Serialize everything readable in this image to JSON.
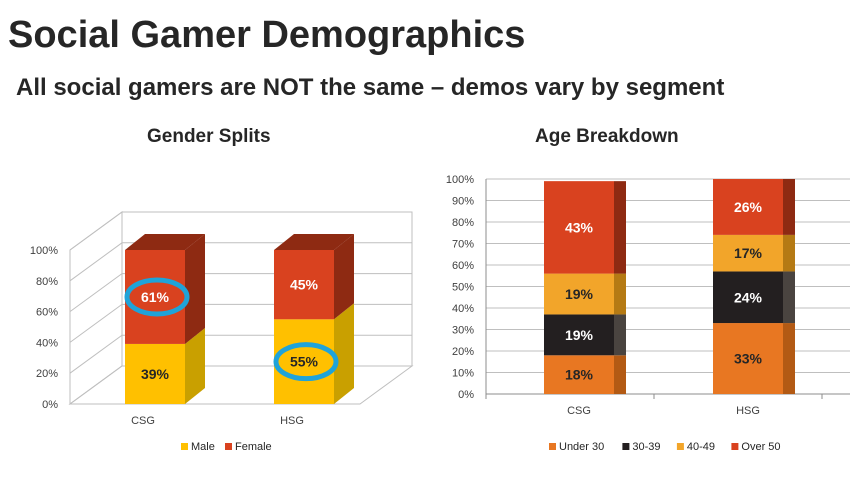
{
  "slide": {
    "title": "Social Gamer Demographics",
    "subtitle": "All social gamers are NOT the same – demos vary by segment"
  },
  "chart_data": [
    {
      "type": "bar",
      "stacked": true,
      "three_d": true,
      "title": "Gender Splits",
      "categories": [
        "CSG",
        "HSG"
      ],
      "yticks": [
        "0%",
        "20%",
        "40%",
        "60%",
        "80%",
        "100%"
      ],
      "ylim": [
        0,
        100
      ],
      "series": [
        {
          "name": "Male",
          "values": [
            39,
            55
          ],
          "labels": [
            "39%",
            "55%"
          ],
          "color": "#FFC000",
          "side": "#C9A000",
          "text_color": "#262626"
        },
        {
          "name": "Female",
          "values": [
            61,
            45
          ],
          "labels": [
            "61%",
            "45%"
          ],
          "color": "#D9421F",
          "side": "#8E2A12",
          "text_color": "#FFFFFF"
        }
      ],
      "highlights": [
        {
          "category": "CSG",
          "series": "Female"
        },
        {
          "category": "HSG",
          "series": "Male"
        }
      ],
      "highlight_color": "#1FA3D9",
      "legend": "bottom"
    },
    {
      "type": "bar",
      "stacked": true,
      "title": "Age Breakdown",
      "categories": [
        "CSG",
        "HSG"
      ],
      "yticks": [
        "0%",
        "10%",
        "20%",
        "30%",
        "40%",
        "50%",
        "60%",
        "70%",
        "80%",
        "90%",
        "100%"
      ],
      "ylim": [
        0,
        100
      ],
      "series": [
        {
          "name": "Under 30",
          "values": [
            18,
            33
          ],
          "labels": [
            "18%",
            "33%"
          ],
          "color": "#E87722",
          "side": "#B35A14",
          "text_color": "#262626"
        },
        {
          "name": "30-39",
          "values": [
            19,
            24
          ],
          "labels": [
            "19%",
            "24%"
          ],
          "color": "#231F20",
          "side": "#4A4440",
          "text_color": "#FFFFFF"
        },
        {
          "name": "40-49",
          "values": [
            19,
            17
          ],
          "labels": [
            "19%",
            "17%"
          ],
          "color": "#F2A52A",
          "side": "#B57A14",
          "text_color": "#262626"
        },
        {
          "name": "Over 50",
          "values": [
            43,
            26
          ],
          "labels": [
            "43%",
            "26%"
          ],
          "color": "#D9421F",
          "side": "#8E2A12",
          "text_color": "#FFFFFF"
        }
      ],
      "legend": "bottom"
    }
  ]
}
